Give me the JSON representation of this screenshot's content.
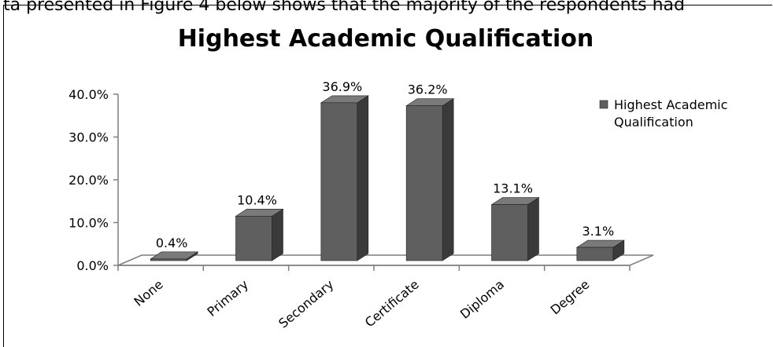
{
  "chart_data": {
    "type": "bar",
    "title": "Highest Academic Qualification",
    "categories": [
      "None",
      "Primary",
      "Secondary",
      "Certificate",
      "Diploma",
      "Degree"
    ],
    "series": [
      {
        "name": "Highest Academic Qualification",
        "values": [
          0.4,
          10.4,
          36.9,
          36.2,
          13.1,
          3.1
        ],
        "labels": [
          "0.4%",
          "10.4%",
          "36.9%",
          "36.2%",
          "13.1%",
          "3.1%"
        ]
      }
    ],
    "legend_lines": [
      "Highest Academic",
      "Qualification"
    ],
    "ylim": [
      0,
      40
    ],
    "yticks": [
      "0.0%",
      "10.0%",
      "20.0%",
      "30.0%",
      "40.0%"
    ],
    "ytick_values": [
      0,
      10,
      20,
      30,
      40
    ],
    "legend_position": "right",
    "grid": false,
    "colors": {
      "bar_front": "#5f5f5f",
      "bar_side": "#3a3a3a",
      "bar_top": "#7a7a7a",
      "axis": "#7f7f7f"
    }
  },
  "header_fragment": "ta presented in Figure 4 below shows that the majority of the respondents had"
}
